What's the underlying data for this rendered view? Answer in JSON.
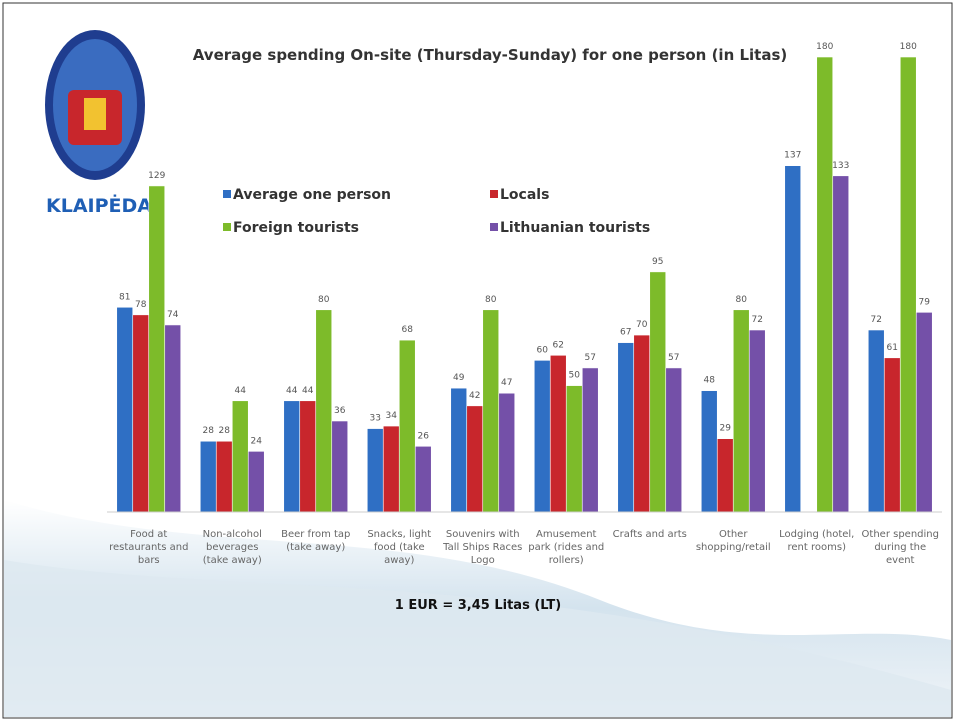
{
  "chart_data": {
    "type": "bar",
    "title": "Average spending On-site (Thursday-Sunday) for one person (in Litas)",
    "logo_text": "KLAIPĖDA",
    "footnote": "1 EUR = 3,45 Litas (LT)",
    "categories": [
      "Food at restaurants and bars",
      "Non-alcohol beverages (take away)",
      "Beer from tap (take away)",
      "Snacks, light food (take away)",
      "Souvenirs with Tall Ships Races Logo",
      "Amusement park (rides and rollers)",
      "Crafts and arts",
      "Other shopping/retail",
      "Lodging (hotel, rent rooms)",
      "Other spending during the event"
    ],
    "series": [
      {
        "name": "Average one person",
        "color": "#2f6fc4",
        "values": [
          81,
          28,
          44,
          33,
          49,
          60,
          67,
          48,
          137,
          72
        ]
      },
      {
        "name": "Locals",
        "color": "#c8262c",
        "values": [
          78,
          28,
          44,
          34,
          42,
          62,
          70,
          29,
          null,
          61
        ]
      },
      {
        "name": "Foreign tourists",
        "color": "#7dbb2a",
        "values": [
          129,
          44,
          80,
          68,
          80,
          50,
          95,
          80,
          180,
          180
        ]
      },
      {
        "name": "Lithuanian tourists",
        "color": "#7450a8",
        "values": [
          74,
          24,
          36,
          26,
          47,
          57,
          57,
          72,
          133,
          79
        ]
      }
    ],
    "ylim": [
      0,
      180
    ]
  }
}
